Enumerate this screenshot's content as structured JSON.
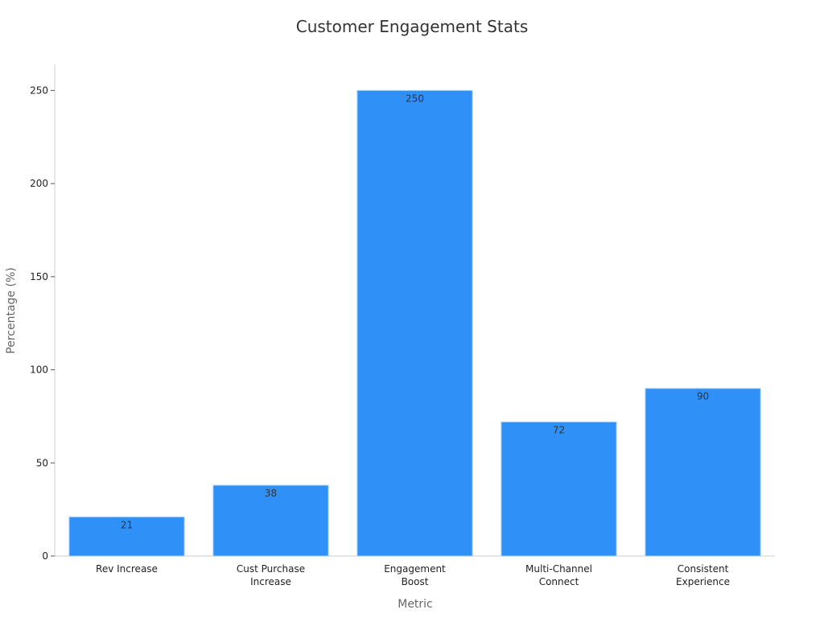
{
  "chart_data": {
    "type": "bar",
    "title": "Customer Engagement Stats",
    "xlabel": "Metric",
    "ylabel": "Percentage (%)",
    "categories": [
      [
        "Rev Increase"
      ],
      [
        "Cust Purchase",
        "Increase"
      ],
      [
        "Engagement",
        "Boost"
      ],
      [
        "Multi-Channel",
        "Connect"
      ],
      [
        "Consistent",
        "Experience"
      ]
    ],
    "values": [
      21,
      38,
      250,
      72,
      90
    ],
    "ylim": [
      0,
      264
    ],
    "yticks": [
      0,
      50,
      100,
      150,
      200,
      250
    ],
    "grid": false,
    "bar_color": "#2f91f8",
    "bar_edge_color": "#a8d0fb"
  }
}
